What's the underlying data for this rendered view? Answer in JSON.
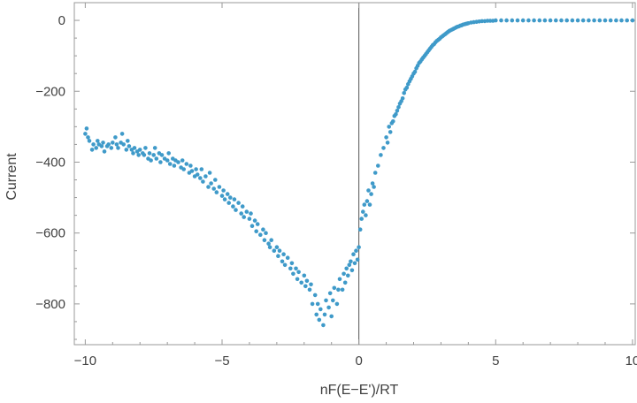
{
  "chart_data": {
    "type": "scatter",
    "title": "",
    "xlabel": "nF(E−E')/RT",
    "ylabel": "Current",
    "xlim": [
      -10.4,
      10.1
    ],
    "ylim": [
      -915,
      50
    ],
    "x_ticks": [
      -10,
      -5,
      0,
      5,
      10
    ],
    "x_tick_labels": [
      "−10",
      "−5",
      "0",
      "5",
      "10"
    ],
    "y_ticks": [
      0,
      -200,
      -400,
      -600,
      -800
    ],
    "y_tick_labels": [
      "0",
      "−200",
      "−400",
      "−600",
      "−800"
    ],
    "point_color": "#3f9ac9",
    "frame_color": "#999999",
    "zero_line": "x=0",
    "grid": false,
    "legend": "none",
    "points": [
      [
        -10.0,
        -320
      ],
      [
        -9.9,
        -330
      ],
      [
        -9.85,
        -340
      ],
      [
        -9.95,
        -305
      ],
      [
        -9.75,
        -365
      ],
      [
        -9.7,
        -350
      ],
      [
        -9.6,
        -360
      ],
      [
        -9.55,
        -340
      ],
      [
        -9.5,
        -350
      ],
      [
        -9.4,
        -355
      ],
      [
        -9.35,
        -345
      ],
      [
        -9.3,
        -370
      ],
      [
        -9.2,
        -355
      ],
      [
        -9.15,
        -350
      ],
      [
        -9.05,
        -360
      ],
      [
        -9.0,
        -345
      ],
      [
        -8.9,
        -330
      ],
      [
        -8.85,
        -350
      ],
      [
        -8.8,
        -360
      ],
      [
        -8.7,
        -345
      ],
      [
        -8.65,
        -320
      ],
      [
        -8.6,
        -350
      ],
      [
        -8.5,
        -365
      ],
      [
        -8.45,
        -340
      ],
      [
        -8.4,
        -355
      ],
      [
        -8.3,
        -365
      ],
      [
        -8.25,
        -375
      ],
      [
        -8.2,
        -360
      ],
      [
        -8.1,
        -370
      ],
      [
        -8.05,
        -380
      ],
      [
        -8.0,
        -365
      ],
      [
        -7.9,
        -375
      ],
      [
        -7.85,
        -380
      ],
      [
        -7.8,
        -360
      ],
      [
        -7.7,
        -390
      ],
      [
        -7.65,
        -375
      ],
      [
        -7.6,
        -395
      ],
      [
        -7.5,
        -380
      ],
      [
        -7.45,
        -360
      ],
      [
        -7.4,
        -390
      ],
      [
        -7.3,
        -375
      ],
      [
        -7.25,
        -400
      ],
      [
        -7.2,
        -380
      ],
      [
        -7.1,
        -390
      ],
      [
        -7.0,
        -395
      ],
      [
        -6.95,
        -375
      ],
      [
        -6.9,
        -405
      ],
      [
        -6.8,
        -390
      ],
      [
        -6.75,
        -410
      ],
      [
        -6.7,
        -395
      ],
      [
        -6.6,
        -400
      ],
      [
        -6.5,
        -415
      ],
      [
        -6.45,
        -395
      ],
      [
        -6.4,
        -420
      ],
      [
        -6.3,
        -405
      ],
      [
        -6.2,
        -430
      ],
      [
        -6.15,
        -410
      ],
      [
        -6.1,
        -425
      ],
      [
        -6.0,
        -440
      ],
      [
        -5.95,
        -420
      ],
      [
        -5.9,
        -435
      ],
      [
        -5.8,
        -445
      ],
      [
        -5.75,
        -420
      ],
      [
        -5.7,
        -455
      ],
      [
        -5.6,
        -440
      ],
      [
        -5.5,
        -470
      ],
      [
        -5.45,
        -430
      ],
      [
        -5.4,
        -460
      ],
      [
        -5.3,
        -475
      ],
      [
        -5.25,
        -450
      ],
      [
        -5.2,
        -485
      ],
      [
        -5.1,
        -470
      ],
      [
        -5.0,
        -495
      ],
      [
        -4.95,
        -480
      ],
      [
        -4.9,
        -505
      ],
      [
        -4.8,
        -490
      ],
      [
        -4.75,
        -515
      ],
      [
        -4.7,
        -500
      ],
      [
        -4.6,
        -525
      ],
      [
        -4.55,
        -505
      ],
      [
        -4.5,
        -535
      ],
      [
        -4.4,
        -515
      ],
      [
        -4.3,
        -545
      ],
      [
        -4.25,
        -525
      ],
      [
        -4.2,
        -555
      ],
      [
        -4.1,
        -540
      ],
      [
        -4.0,
        -560
      ],
      [
        -3.95,
        -545
      ],
      [
        -3.9,
        -580
      ],
      [
        -3.8,
        -565
      ],
      [
        -3.75,
        -595
      ],
      [
        -3.7,
        -575
      ],
      [
        -3.6,
        -605
      ],
      [
        -3.5,
        -590
      ],
      [
        -3.45,
        -620
      ],
      [
        -3.4,
        -600
      ],
      [
        -3.3,
        -630
      ],
      [
        -3.25,
        -640
      ],
      [
        -3.2,
        -620
      ],
      [
        -3.1,
        -650
      ],
      [
        -3.0,
        -640
      ],
      [
        -2.95,
        -665
      ],
      [
        -2.9,
        -650
      ],
      [
        -2.8,
        -680
      ],
      [
        -2.75,
        -660
      ],
      [
        -2.7,
        -690
      ],
      [
        -2.6,
        -670
      ],
      [
        -2.5,
        -700
      ],
      [
        -2.45,
        -685
      ],
      [
        -2.4,
        -715
      ],
      [
        -2.3,
        -700
      ],
      [
        -2.25,
        -730
      ],
      [
        -2.2,
        -710
      ],
      [
        -2.1,
        -740
      ],
      [
        -2.0,
        -720
      ],
      [
        -1.95,
        -750
      ],
      [
        -1.9,
        -735
      ],
      [
        -1.8,
        -760
      ],
      [
        -1.75,
        -745
      ],
      [
        -1.7,
        -800
      ],
      [
        -1.6,
        -775
      ],
      [
        -1.55,
        -830
      ],
      [
        -1.5,
        -800
      ],
      [
        -1.45,
        -845
      ],
      [
        -1.4,
        -815
      ],
      [
        -1.3,
        -860
      ],
      [
        -1.25,
        -830
      ],
      [
        -1.2,
        -790
      ],
      [
        -1.1,
        -810
      ],
      [
        -1.05,
        -770
      ],
      [
        -1.0,
        -835
      ],
      [
        -0.95,
        -790
      ],
      [
        -0.9,
        -755
      ],
      [
        -0.8,
        -800
      ],
      [
        -0.75,
        -760
      ],
      [
        -0.7,
        -730
      ],
      [
        -0.6,
        -760
      ],
      [
        -0.55,
        -715
      ],
      [
        -0.5,
        -740
      ],
      [
        -0.45,
        -700
      ],
      [
        -0.4,
        -720
      ],
      [
        -0.35,
        -690
      ],
      [
        -0.3,
        -680
      ],
      [
        -0.25,
        -705
      ],
      [
        -0.2,
        -660
      ],
      [
        -0.15,
        -685
      ],
      [
        -0.1,
        -650
      ],
      [
        -0.05,
        -675
      ],
      [
        0.0,
        -640
      ],
      [
        0.05,
        -590
      ],
      [
        0.1,
        -560
      ],
      [
        0.15,
        -540
      ],
      [
        0.2,
        -520
      ],
      [
        0.25,
        -550
      ],
      [
        0.3,
        -510
      ],
      [
        0.35,
        -480
      ],
      [
        0.4,
        -520
      ],
      [
        0.45,
        -490
      ],
      [
        0.5,
        -460
      ],
      [
        0.55,
        -470
      ],
      [
        0.6,
        -430
      ],
      [
        0.7,
        -410
      ],
      [
        0.8,
        -380
      ],
      [
        0.9,
        -360
      ],
      [
        1.0,
        -330
      ],
      [
        1.1,
        -300
      ],
      [
        1.2,
        -290
      ],
      [
        1.3,
        -270
      ],
      [
        1.4,
        -255
      ],
      [
        1.5,
        -235
      ],
      [
        1.6,
        -220
      ],
      [
        1.7,
        -195
      ],
      [
        1.8,
        -180
      ],
      [
        1.9,
        -165
      ],
      [
        2.0,
        -150
      ],
      [
        2.1,
        -135
      ],
      [
        2.2,
        -120
      ],
      [
        2.3,
        -110
      ],
      [
        2.4,
        -100
      ],
      [
        2.5,
        -90
      ],
      [
        2.6,
        -80
      ],
      [
        2.7,
        -70
      ],
      [
        2.8,
        -62
      ],
      [
        2.9,
        -55
      ],
      [
        3.0,
        -48
      ],
      [
        3.1,
        -42
      ],
      [
        3.2,
        -36
      ],
      [
        3.3,
        -30
      ],
      [
        3.4,
        -26
      ],
      [
        3.5,
        -22
      ],
      [
        3.6,
        -18
      ],
      [
        3.7,
        -15
      ],
      [
        3.8,
        -12
      ],
      [
        3.9,
        -10
      ],
      [
        4.0,
        -8
      ],
      [
        4.1,
        -6
      ],
      [
        4.2,
        -5
      ],
      [
        4.3,
        -4
      ],
      [
        4.4,
        -3
      ],
      [
        4.5,
        -2
      ],
      [
        4.6,
        -2
      ],
      [
        4.7,
        -1
      ],
      [
        4.8,
        -1
      ],
      [
        4.9,
        -1
      ],
      [
        5.0,
        0
      ],
      [
        5.2,
        0
      ],
      [
        5.4,
        0
      ],
      [
        5.6,
        0
      ],
      [
        5.8,
        0
      ],
      [
        6.0,
        0
      ],
      [
        6.2,
        0
      ],
      [
        6.4,
        0
      ],
      [
        6.6,
        0
      ],
      [
        6.8,
        0
      ],
      [
        7.0,
        0
      ],
      [
        7.2,
        0
      ],
      [
        7.4,
        0
      ],
      [
        7.6,
        0
      ],
      [
        7.8,
        0
      ],
      [
        8.0,
        0
      ],
      [
        8.2,
        0
      ],
      [
        8.4,
        0
      ],
      [
        8.6,
        0
      ],
      [
        8.8,
        0
      ],
      [
        9.0,
        0
      ],
      [
        9.2,
        0
      ],
      [
        9.4,
        0
      ],
      [
        9.6,
        0
      ],
      [
        9.8,
        0
      ],
      [
        10.0,
        0
      ],
      [
        1.05,
        -345
      ],
      [
        1.15,
        -315
      ],
      [
        1.25,
        -285
      ],
      [
        1.35,
        -265
      ],
      [
        1.45,
        -245
      ],
      [
        1.55,
        -228
      ],
      [
        1.65,
        -205
      ],
      [
        1.75,
        -190
      ],
      [
        1.85,
        -172
      ],
      [
        1.95,
        -158
      ],
      [
        2.05,
        -145
      ],
      [
        2.15,
        -128
      ],
      [
        2.25,
        -116
      ],
      [
        2.35,
        -105
      ],
      [
        2.45,
        -95
      ],
      [
        2.55,
        -85
      ],
      [
        2.65,
        -75
      ],
      [
        2.75,
        -67
      ],
      [
        2.85,
        -58
      ],
      [
        2.95,
        -52
      ],
      [
        3.05,
        -45
      ],
      [
        3.15,
        -39
      ],
      [
        3.25,
        -33
      ],
      [
        3.35,
        -28
      ],
      [
        3.45,
        -24
      ],
      [
        3.55,
        -20
      ],
      [
        3.65,
        -17
      ],
      [
        3.75,
        -14
      ],
      [
        3.85,
        -11
      ],
      [
        3.95,
        -9
      ]
    ]
  }
}
